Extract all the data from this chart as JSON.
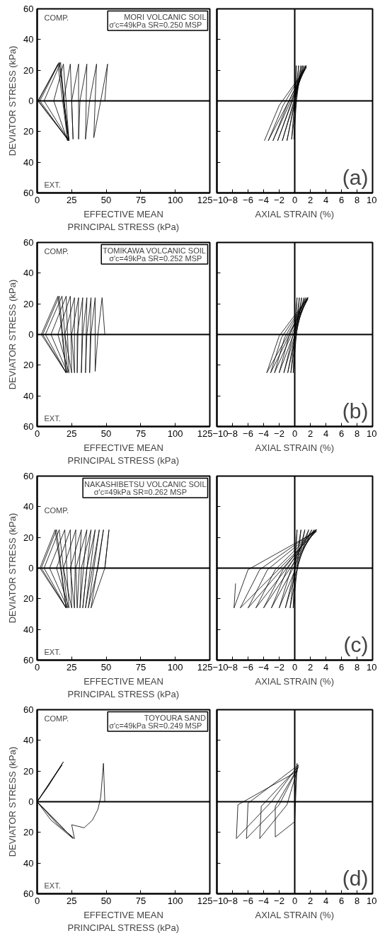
{
  "chart_data": [
    {
      "type": "line",
      "xlabel": "EFFECTIVE MEAN PRINCIPAL STRESS (kPa)",
      "ylabel": "DEVIATOR STRESS (kPa)",
      "xlim": [
        0,
        125
      ],
      "xticks": [
        0,
        25,
        50,
        75,
        100,
        125
      ],
      "ylim": [
        -60,
        60
      ],
      "yticks": [
        {
          "value": -60,
          "label": "60"
        },
        {
          "value": -40,
          "label": "40"
        },
        {
          "value": -20,
          "label": "20"
        },
        0,
        20,
        40,
        60
      ],
      "grid": false,
      "ref_lines": [
        {
          "axis": "y",
          "value": 0,
          "color": "#000000"
        }
      ],
      "annotations": [
        "MORI VOLCANIC SOIL",
        "σ'c=49kPa SR=0.250   MSP",
        "COMP.",
        "EXT."
      ],
      "series": [
        {
          "color": "#000000",
          "x": [
            49,
            51,
            46,
            41,
            43,
            38,
            35,
            36,
            31,
            30,
            30,
            25,
            26,
            24,
            19,
            23,
            19,
            12,
            22,
            17,
            5,
            23,
            16,
            2,
            22,
            15,
            1,
            23,
            16,
            0.5,
            22
          ],
          "values": [
            0,
            24,
            0,
            -24,
            24,
            0,
            -25,
            24,
            0,
            -25,
            24,
            0,
            -25,
            24,
            0,
            -26,
            24,
            0,
            -26,
            25,
            0,
            -26,
            25,
            0,
            -25,
            24,
            0,
            -26,
            25,
            0,
            -25
          ]
        }
      ]
    },
    {
      "type": "line",
      "xlabel": "AXIAL STRAIN (%)",
      "xlim": [
        -10,
        10
      ],
      "xticks": [
        -10,
        -8,
        -6,
        -4,
        -2,
        0,
        2,
        4,
        6,
        8,
        10
      ],
      "ylim": [
        -60,
        60
      ],
      "yticks": [
        {
          "value": -60,
          "label": "60"
        },
        {
          "value": -40,
          "label": "40"
        },
        {
          "value": -20,
          "label": "20"
        },
        0,
        20,
        40,
        60
      ],
      "tick_labels": "x",
      "grid": false,
      "ref_lines": [
        {
          "axis": "y",
          "value": 0,
          "color": "#000000"
        },
        {
          "axis": "x",
          "value": 0,
          "color": "#000000"
        }
      ],
      "annotations": [
        "(a)"
      ],
      "series": [
        {
          "color": "#000000",
          "x": [
            0,
            0.2,
            0.1,
            -0.1,
            0.5,
            0,
            -0.4,
            0.8,
            0,
            -1,
            1,
            0,
            -1.6,
            1.2,
            -0.5,
            -2.2,
            1.4,
            -1,
            -2.8,
            1.5,
            -1.5,
            -3.4,
            1.5,
            -2,
            -3.9
          ],
          "values": [
            0,
            23,
            0,
            -25,
            23,
            0,
            -25,
            23,
            0,
            -26,
            23,
            0,
            -26,
            23,
            -2,
            -26,
            23,
            -3,
            -26,
            23,
            -3,
            -26,
            22,
            -3,
            -26
          ]
        }
      ]
    },
    {
      "type": "line",
      "xlabel": "EFFECTIVE MEAN PRINCIPAL STRESS (kPa)",
      "ylabel": "DEVIATOR STRESS (kPa)",
      "xlim": [
        0,
        125
      ],
      "xticks": [
        0,
        25,
        50,
        75,
        100,
        125
      ],
      "ylim": [
        -60,
        60
      ],
      "yticks": [
        {
          "value": -60,
          "label": "60"
        },
        {
          "value": -40,
          "label": "40"
        },
        {
          "value": -20,
          "label": "20"
        },
        0,
        20,
        40,
        60
      ],
      "grid": false,
      "ref_lines": [
        {
          "axis": "y",
          "value": 0,
          "color": "#000000"
        }
      ],
      "annotations": [
        "TOMIKAWA VOLCANIC SOIL",
        "σ'c=49kPa SR=0.252   MSP",
        "COMP.",
        "EXT."
      ],
      "series": [
        {
          "color": "#000000",
          "x": [
            49,
            47,
            44,
            42,
            42,
            39,
            38,
            39,
            36,
            35,
            36,
            33,
            32,
            33,
            29,
            29,
            30,
            25,
            27,
            27,
            20,
            25,
            24,
            15,
            23,
            21,
            10,
            22,
            18,
            6,
            21,
            16,
            4,
            21,
            15,
            3,
            21
          ],
          "values": [
            0,
            24,
            0,
            -24,
            24,
            0,
            -25,
            24,
            0,
            -25,
            24,
            0,
            -25,
            24,
            0,
            -25,
            24,
            0,
            -25,
            24,
            0,
            -25,
            25,
            0,
            -25,
            25,
            0,
            -25,
            25,
            0,
            -25,
            25,
            0,
            -25,
            25,
            0,
            -25
          ]
        }
      ]
    },
    {
      "type": "line",
      "xlabel": "AXIAL STRAIN (%)",
      "xlim": [
        -10,
        10
      ],
      "xticks": [
        -10,
        -8,
        -6,
        -4,
        -2,
        0,
        2,
        4,
        6,
        8,
        10
      ],
      "ylim": [
        -60,
        60
      ],
      "yticks": [
        {
          "value": -60,
          "label": "60"
        },
        {
          "value": -40,
          "label": "40"
        },
        {
          "value": -20,
          "label": "20"
        },
        0,
        20,
        40,
        60
      ],
      "tick_labels": "x",
      "grid": false,
      "ref_lines": [
        {
          "axis": "y",
          "value": 0,
          "color": "#000000"
        },
        {
          "axis": "x",
          "value": 0,
          "color": "#000000"
        }
      ],
      "annotations": [
        "(b)"
      ],
      "series": [
        {
          "color": "#000000",
          "x": [
            0,
            0.3,
            0,
            -0.2,
            0.6,
            0,
            -0.5,
            0.9,
            0,
            -0.9,
            1.2,
            -0.3,
            -1.4,
            1.4,
            -0.8,
            -2,
            1.6,
            -1.3,
            -2.6,
            1.7,
            -1.7,
            -3.1,
            1.7,
            -2,
            -3.6,
            1.7
          ],
          "values": [
            0,
            24,
            0,
            -25,
            24,
            0,
            -25,
            24,
            -1,
            -25,
            24,
            -2,
            -25,
            24,
            -2,
            -25,
            24,
            -2,
            -25,
            24,
            -2,
            -25,
            24,
            -1,
            -25,
            23
          ]
        }
      ]
    },
    {
      "type": "line",
      "xlabel": "EFFECTIVE MEAN PRINCIPAL STRESS (kPa)",
      "ylabel": "DEVIATOR STRESS (kPa)",
      "xlim": [
        0,
        125
      ],
      "xticks": [
        0,
        25,
        50,
        75,
        100,
        125
      ],
      "ylim": [
        -60,
        60
      ],
      "yticks": [
        {
          "value": -60,
          "label": "60"
        },
        {
          "value": -40,
          "label": "40"
        },
        {
          "value": -20,
          "label": "20"
        },
        0,
        20,
        40,
        60
      ],
      "grid": false,
      "ref_lines": [
        {
          "axis": "y",
          "value": 0,
          "color": "#000000"
        }
      ],
      "annotations": [
        "NAKASHIBETSU VOLCANIC SOIL",
        "σ'c=49kPa SR=0.262          MSP",
        "COMP.",
        "EXT."
      ],
      "series": [
        {
          "color": "#000000",
          "x": [
            49,
            52,
            49,
            39,
            48,
            44,
            37,
            45,
            40,
            35,
            42,
            36,
            33,
            39,
            32,
            31,
            36,
            28,
            29,
            32,
            24,
            27,
            28,
            19,
            25,
            24,
            14,
            23,
            20,
            9,
            22,
            16,
            5,
            21,
            14,
            3,
            21,
            13,
            2,
            21
          ],
          "values": [
            0,
            25,
            0,
            -26,
            25,
            0,
            -26,
            25,
            0,
            -26,
            25,
            0,
            -26,
            25,
            0,
            -26,
            25,
            0,
            -26,
            25,
            0,
            -26,
            25,
            0,
            -26,
            25,
            0,
            -26,
            25,
            0,
            -26,
            25,
            0,
            -26,
            25,
            0,
            -26,
            25,
            0,
            -26
          ]
        }
      ]
    },
    {
      "type": "line",
      "xlabel": "AXIAL STRAIN (%)",
      "xlim": [
        -10,
        10
      ],
      "xticks": [
        -10,
        -8,
        -6,
        -4,
        -2,
        0,
        2,
        4,
        6,
        8,
        10
      ],
      "ylim": [
        -60,
        60
      ],
      "yticks": [
        {
          "value": -60,
          "label": "60"
        },
        {
          "value": -40,
          "label": "40"
        },
        {
          "value": -20,
          "label": "20"
        },
        0,
        20,
        40,
        60
      ],
      "tick_labels": "x",
      "grid": false,
      "ref_lines": [
        {
          "axis": "y",
          "value": 0,
          "color": "#000000"
        },
        {
          "axis": "x",
          "value": 0,
          "color": "#000000"
        }
      ],
      "annotations": [
        "(c)"
      ],
      "series": [
        {
          "color": "#000000",
          "x": [
            0,
            0.3,
            0,
            -0.2,
            0.8,
            0,
            -0.6,
            1.3,
            0,
            -1.2,
            1.8,
            -0.5,
            -2,
            2.2,
            -1,
            -3,
            2.5,
            -1.5,
            -4,
            2.7,
            -2.5,
            -5,
            2.8,
            -3.5,
            -6,
            2.8,
            -4.5,
            -7,
            2.8,
            -6,
            -7.8,
            -7.6
          ],
          "values": [
            0,
            25,
            0,
            -26,
            25,
            0,
            -26,
            25,
            -1,
            -26,
            25,
            -1,
            -26,
            25,
            -1,
            -26,
            25,
            -1,
            -26,
            25,
            -1,
            -26,
            25,
            -1,
            -26,
            25,
            -1,
            -26,
            24,
            -1,
            -26,
            -10
          ]
        }
      ]
    },
    {
      "type": "line",
      "xlabel": "EFFECTIVE MEAN PRINCIPAL STRESS (kPa)",
      "ylabel": "DEVIATOR STRESS (kPa)",
      "xlim": [
        0,
        125
      ],
      "xticks": [
        0,
        25,
        50,
        75,
        100,
        125
      ],
      "ylim": [
        -60,
        60
      ],
      "yticks": [
        {
          "value": -60,
          "label": "60"
        },
        {
          "value": -40,
          "label": "40"
        },
        {
          "value": -20,
          "label": "20"
        },
        0,
        20,
        40,
        60
      ],
      "grid": false,
      "ref_lines": [
        {
          "axis": "y",
          "value": 0,
          "color": "#000000"
        }
      ],
      "annotations": [
        "TOYOURA SAND",
        "σ'c=49kPa SR=0.249   MSP",
        "COMP.",
        "EXT."
      ],
      "series": [
        {
          "color": "#000000",
          "x": [
            49,
            48,
            46,
            44,
            40,
            34,
            25,
            27,
            15,
            0,
            19,
            8,
            0,
            26,
            10,
            0,
            18,
            0,
            25
          ],
          "values": [
            0,
            25,
            3,
            -5,
            -12,
            -17,
            -15,
            -24,
            -15,
            0,
            26,
            10,
            0,
            -24,
            -12,
            0,
            24,
            0,
            -23
          ]
        }
      ]
    },
    {
      "type": "line",
      "xlabel": "AXIAL STRAIN (%)",
      "xlim": [
        -10,
        10
      ],
      "xticks": [
        -10,
        -8,
        -6,
        -4,
        -2,
        0,
        2,
        4,
        6,
        8,
        10
      ],
      "ylim": [
        -60,
        60
      ],
      "yticks": [
        {
          "value": -60,
          "label": "60"
        },
        {
          "value": -40,
          "label": "40"
        },
        {
          "value": -20,
          "label": "20"
        },
        0,
        20,
        40,
        60
      ],
      "tick_labels": "x",
      "grid": false,
      "ref_lines": [
        {
          "axis": "y",
          "value": 0,
          "color": "#000000"
        },
        {
          "axis": "x",
          "value": 0,
          "color": "#000000"
        }
      ],
      "annotations": [
        "(d)"
      ],
      "series": [
        {
          "color": "#000000",
          "x": [
            0,
            0.3,
            0,
            -2.5,
            -2.5,
            0.4,
            -1,
            -4.5,
            -4.3,
            0.5,
            -2,
            -6.2,
            -6,
            0.5,
            -3,
            -7.5,
            -7.3,
            0.4
          ],
          "values": [
            0,
            25,
            -13,
            -23,
            -3,
            22,
            -2,
            -24,
            -3,
            23,
            -2,
            -24,
            -1,
            24,
            0,
            -24,
            -2,
            20
          ]
        }
      ]
    }
  ]
}
